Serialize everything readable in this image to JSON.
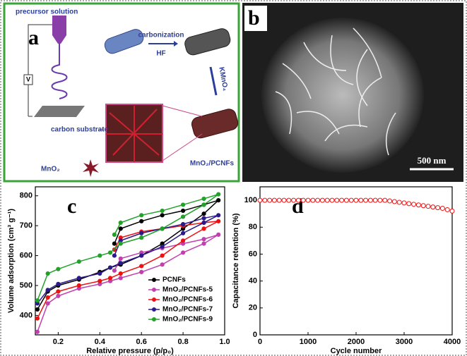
{
  "panels": {
    "a": {
      "letter": "a",
      "precursor": "precursor solution",
      "voltage": "V",
      "carbonization": "carbonization",
      "hf": "HF",
      "kmno4": "KMnO₄",
      "substrate": "carbon substrate",
      "mno2": "MnO₂",
      "product": "MnO₂/PCNFs"
    },
    "b": {
      "letter": "b",
      "scale": "500 nm"
    }
  },
  "chart_data": [
    {
      "type": "line",
      "panel_label": "c",
      "markers": true,
      "x_label": "Relative pressure (p/p₀)",
      "y_label": "Volume adsorption (cm³ g⁻¹)",
      "x": [
        0.1,
        0.15,
        0.2,
        0.3,
        0.4,
        0.45,
        0.5,
        0.6,
        0.7,
        0.8,
        0.9,
        0.97,
        0.9,
        0.8,
        0.7,
        0.6,
        0.5,
        0.47
      ],
      "xlim": [
        0.09,
        1.0
      ],
      "xticks": [
        0.2,
        0.4,
        0.6,
        0.8,
        {
          "value": 1,
          "label": "1.0"
        }
      ],
      "ylim": [
        335,
        830
      ],
      "yticks": [
        400,
        500,
        600,
        700,
        800
      ],
      "legend": "lower right",
      "series": [
        {
          "name": "PCNFs",
          "color": "#000000",
          "values": [
            420,
            480,
            500,
            520,
            545,
            560,
            570,
            600,
            640,
            690,
            740,
            785,
            770,
            750,
            735,
            715,
            690,
            640
          ]
        },
        {
          "name": "MnO₂/PCNFs-5",
          "color": "#c040b0",
          "values": [
            345,
            440,
            465,
            490,
            505,
            515,
            525,
            545,
            570,
            610,
            640,
            670,
            655,
            640,
            625,
            610,
            590,
            550
          ]
        },
        {
          "name": "MnO₂/PCNFs-6",
          "color": "#ee1111",
          "values": [
            390,
            460,
            480,
            500,
            515,
            525,
            540,
            565,
            600,
            650,
            690,
            715,
            710,
            700,
            690,
            680,
            660,
            620
          ]
        },
        {
          "name": "MnO₂/PCNFs-7",
          "color": "#2a1a8a",
          "values": [
            440,
            485,
            505,
            525,
            540,
            560,
            575,
            600,
            630,
            675,
            710,
            735,
            725,
            705,
            690,
            675,
            650,
            600
          ]
        },
        {
          "name": "MnO₂/PCNFs-9",
          "color": "#22a22a",
          "values": [
            450,
            540,
            555,
            580,
            600,
            610,
            640,
            660,
            690,
            730,
            770,
            805,
            790,
            770,
            750,
            735,
            710,
            670
          ]
        }
      ]
    },
    {
      "type": "scatter",
      "panel_label": "d",
      "x_label": "Cycle number",
      "y_label": "Capacitance retention (%)",
      "x": [
        0,
        100,
        200,
        300,
        400,
        500,
        600,
        700,
        800,
        900,
        1000,
        1100,
        1200,
        1300,
        1400,
        1500,
        1600,
        1700,
        1800,
        1900,
        2000,
        2100,
        2200,
        2300,
        2400,
        2500,
        2600,
        2700,
        2800,
        2900,
        3000,
        3100,
        3200,
        3300,
        3400,
        3500,
        3600,
        3700,
        3800,
        3900,
        4000
      ],
      "xlim": [
        0,
        4000
      ],
      "xticks": [
        0,
        1000,
        2000,
        3000,
        4000
      ],
      "ylim": [
        0,
        110
      ],
      "yticks": [
        0,
        20,
        40,
        60,
        80,
        100
      ],
      "series": [
        {
          "color": "#ee1111",
          "values": [
            100,
            100,
            100,
            100,
            100,
            100,
            100,
            100,
            100,
            100,
            100,
            100,
            100,
            100,
            100,
            100,
            100,
            100,
            100,
            100,
            100,
            100,
            100,
            100,
            100,
            100,
            100,
            99.5,
            99,
            98.5,
            98,
            97.5,
            97,
            96.5,
            96,
            95.5,
            95,
            94.5,
            94,
            93,
            92
          ]
        }
      ]
    }
  ]
}
